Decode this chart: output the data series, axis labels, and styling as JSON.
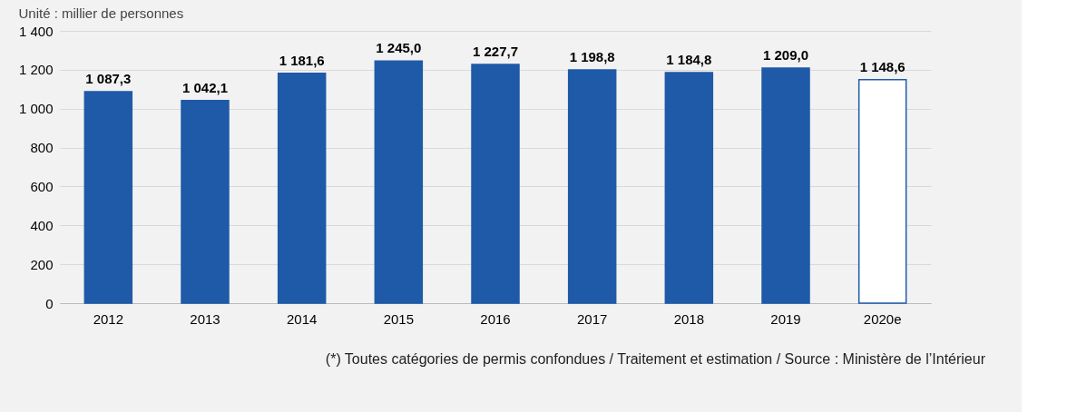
{
  "chart_data": {
    "type": "bar",
    "subtitle": "Unité : millier de personnes",
    "categories": [
      "2012",
      "2013",
      "2014",
      "2015",
      "2016",
      "2017",
      "2018",
      "2019",
      "2020e"
    ],
    "series": [
      {
        "color": "#1f5aa8",
        "colors": [
          "#1f5aa8",
          "#1f5aa8",
          "#1f5aa8",
          "#1f5aa8",
          "#1f5aa8",
          "#1f5aa8",
          "#1f5aa8",
          "#1f5aa8",
          "#ffffff"
        ],
        "values": [
          1087.3,
          1042.1,
          1181.6,
          1245.0,
          1227.7,
          1198.8,
          1184.8,
          1209.0,
          1148.6
        ],
        "value_labels": [
          "1 087,3",
          "1 042,1",
          "1 181,6",
          "1 245,0",
          "1 227,7",
          "1 198,8",
          "1 184,8",
          "1 209,0",
          "1 148,6"
        ]
      }
    ],
    "ylim": [
      0,
      1400
    ],
    "yticks": [
      0,
      200,
      400,
      600,
      800,
      {
        "value": 1000,
        "label": "1 000"
      },
      {
        "value": 1200,
        "label": "1 200"
      },
      {
        "value": 1400,
        "label": "1 400"
      }
    ],
    "grid": "y",
    "annotations": [
      "(*) Toutes catégories de permis confondues / Traitement et estimation / Source : Ministère de l’Intérieur"
    ]
  }
}
